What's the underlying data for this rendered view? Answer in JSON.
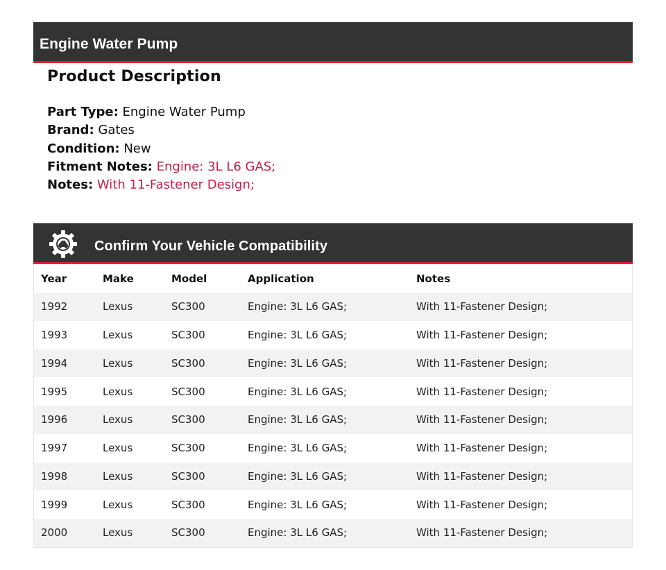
{
  "product_header": {
    "title": "Engine Water Pump"
  },
  "description": {
    "heading": "Product Description",
    "fields": [
      {
        "label": "Part Type:",
        "value": "Engine Water Pump",
        "highlight": false
      },
      {
        "label": "Brand:",
        "value": "Gates",
        "highlight": false
      },
      {
        "label": "Condition:",
        "value": "New",
        "highlight": false
      },
      {
        "label": "Fitment Notes:",
        "value": "Engine: 3L L6 GAS;",
        "highlight": true
      },
      {
        "label": "Notes:",
        "value": "With 11-Fastener Design;",
        "highlight": true
      }
    ]
  },
  "compatibility": {
    "title": "Confirm Your Vehicle Compatibility",
    "icon": "gear-car-icon",
    "columns": [
      "Year",
      "Make",
      "Model",
      "Application",
      "Notes"
    ],
    "rows": [
      [
        "1992",
        "Lexus",
        "SC300",
        "Engine: 3L L6 GAS;",
        "With 11-Fastener Design;"
      ],
      [
        "1993",
        "Lexus",
        "SC300",
        "Engine: 3L L6 GAS;",
        "With 11-Fastener Design;"
      ],
      [
        "1994",
        "Lexus",
        "SC300",
        "Engine: 3L L6 GAS;",
        "With 11-Fastener Design;"
      ],
      [
        "1995",
        "Lexus",
        "SC300",
        "Engine: 3L L6 GAS;",
        "With 11-Fastener Design;"
      ],
      [
        "1996",
        "Lexus",
        "SC300",
        "Engine: 3L L6 GAS;",
        "With 11-Fastener Design;"
      ],
      [
        "1997",
        "Lexus",
        "SC300",
        "Engine: 3L L6 GAS;",
        "With 11-Fastener Design;"
      ],
      [
        "1998",
        "Lexus",
        "SC300",
        "Engine: 3L L6 GAS;",
        "With 11-Fastener Design;"
      ],
      [
        "1999",
        "Lexus",
        "SC300",
        "Engine: 3L L6 GAS;",
        "With 11-Fastener Design;"
      ],
      [
        "2000",
        "Lexus",
        "SC300",
        "Engine: 3L L6 GAS;",
        "With 11-Fastener Design;"
      ]
    ]
  },
  "colors": {
    "header_bg": "#333333",
    "accent_red": "#e0202e",
    "notes_text": "#c41e4a",
    "stripe": "#f2f2f2"
  }
}
